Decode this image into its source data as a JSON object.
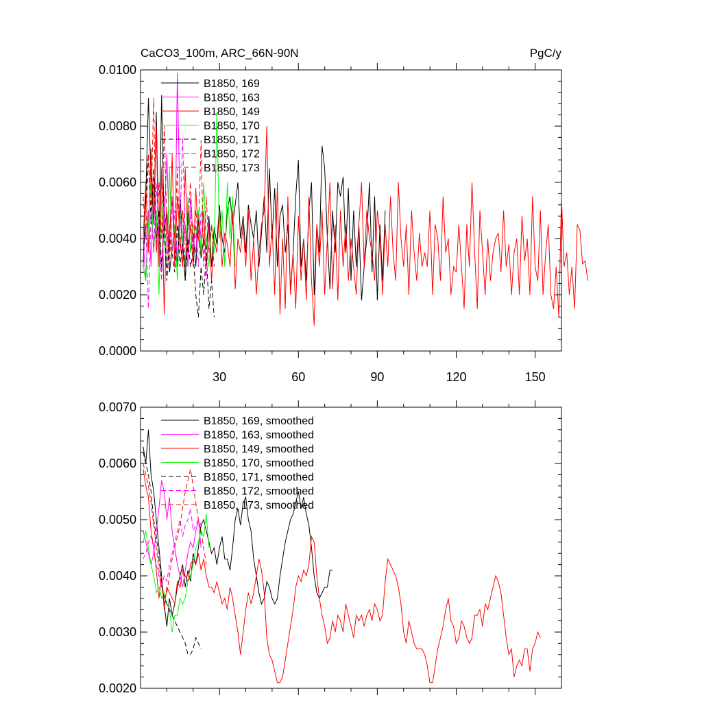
{
  "colors": {
    "black": "#000000",
    "magenta": "#ff00ff",
    "red": "#ff0000",
    "green": "#00ff00"
  },
  "chart_data": [
    {
      "type": "line",
      "title": "CaCO3_100m, ARC_66N-90N",
      "units": "PgC/y",
      "ylim": [
        0,
        0.01
      ],
      "xlim": [
        0,
        160
      ],
      "yticks": [
        "0.0000",
        "0.0020",
        "0.0040",
        "0.0060",
        "0.0080",
        "0.0100"
      ],
      "xticks": [
        "30",
        "60",
        "90",
        "120",
        "150"
      ],
      "legend_position": "top-left",
      "series": [
        {
          "name": "B1850, 169",
          "color": "#000000",
          "dash": "solid",
          "values": [
            0.003,
            0.0055,
            0.009,
            0.0062,
            0.0045,
            0.0085,
            0.0035,
            0.0091,
            0.0042,
            0.005,
            0.0028,
            0.0036,
            0.0044,
            0.003,
            0.0055,
            0.004,
            0.0025,
            0.005,
            0.0035,
            0.0042,
            0.003,
            0.0047,
            0.0033,
            0.004,
            0.0036,
            0.0048,
            0.003,
            0.0044,
            0.0038,
            0.0052,
            0.004,
            0.0035,
            0.005,
            0.0055,
            0.0045,
            0.0052,
            0.006,
            0.004,
            0.0048,
            0.0035,
            0.0052,
            0.0045,
            0.004,
            0.005,
            0.003,
            0.0042,
            0.0055,
            0.0035,
            0.0065,
            0.004,
            0.0058,
            0.003,
            0.0048,
            0.0052,
            0.0035,
            0.0045,
            0.0022,
            0.0035,
            0.0055,
            0.0068,
            0.003,
            0.004,
            0.0025,
            0.005,
            0.006,
            0.002,
            0.0045,
            0.0035,
            0.0073,
            0.0065,
            0.004,
            0.0022,
            0.005,
            0.0035,
            0.006,
            0.0055,
            0.0062,
            0.0035,
            0.0058,
            0.0025,
            0.005,
            0.003,
            0.0045,
            0.0018,
            0.003,
            0.004,
            0.006,
            0.0028,
            0.0055,
            0.0018,
            0.0045,
            0.0025,
            0.005
          ]
        },
        {
          "name": "B1850, 163",
          "color": "#ff00ff",
          "dash": "solid",
          "values": [
            0.004,
            0.0025,
            0.005,
            0.003,
            0.006,
            0.0035,
            0.005,
            0.0028,
            0.0045,
            0.007,
            0.004,
            0.0055,
            0.003,
            0.0099,
            0.005,
            0.0035,
            0.0045,
            0.003,
            0.0055,
            0.004,
            0.0035,
            0.005,
            0.004
          ]
        },
        {
          "name": "B1850, 149",
          "color": "#ff0000",
          "dash": "solid",
          "values": [
            0.004,
            0.006,
            0.0035,
            0.0072,
            0.0045,
            0.008,
            0.003,
            0.0065,
            0.0013,
            0.005,
            0.0035,
            0.007,
            0.003,
            0.0055,
            0.004,
            0.003,
            0.0065,
            0.0035,
            0.0045,
            0.003,
            0.0058,
            0.004,
            0.0035,
            0.005,
            0.003,
            0.0045,
            0.0025,
            0.004,
            0.0035,
            0.005,
            0.003,
            0.0042,
            0.0038,
            0.003,
            0.005,
            0.0022,
            0.004,
            0.0035,
            0.0045,
            0.003,
            0.005,
            0.0025,
            0.004,
            0.002,
            0.0035,
            0.0045,
            0.005,
            0.008,
            0.003,
            0.0045,
            0.002,
            0.006,
            0.0013,
            0.004,
            0.0015,
            0.0055,
            0.002,
            0.0035,
            0.0015,
            0.0048,
            0.0025,
            0.004,
            0.0018,
            0.0055,
            0.0025,
            0.0009,
            0.0045,
            0.003,
            0.005,
            0.002,
            0.004,
            0.006,
            0.0022,
            0.0045,
            0.0018,
            0.005,
            0.003,
            0.0045,
            0.0025,
            0.004,
            0.003,
            0.002,
            0.0045,
            0.006,
            0.003,
            0.005,
            0.004,
            0.0035,
            0.0025,
            0.005,
            0.0042,
            0.002,
            0.0045,
            0.003,
            0.0055,
            0.0035,
            0.0025,
            0.006,
            0.004,
            0.003,
            0.0045,
            0.002,
            0.005,
            0.0035,
            0.0025,
            0.0042,
            0.003,
            0.0035,
            0.003,
            0.005,
            0.002,
            0.0045,
            0.004,
            0.0025,
            0.0055,
            0.0035,
            0.004,
            0.002,
            0.003,
            0.0028,
            0.0045,
            0.003,
            0.0015,
            0.0045,
            0.003,
            0.006,
            0.0035,
            0.0015,
            0.005,
            0.0035,
            0.002,
            0.004,
            0.0025,
            0.0035,
            0.004,
            0.0042,
            0.0028,
            0.005,
            0.003,
            0.0038,
            0.002,
            0.0035,
            0.004,
            0.002,
            0.0048,
            0.0032,
            0.004,
            0.002,
            0.0055,
            0.003,
            0.0025,
            0.005,
            0.002,
            0.0035,
            0.0045,
            0.002,
            0.0015,
            0.003,
            0.0012,
            0.0055,
            0.003,
            0.0035,
            0.002,
            0.003,
            0.0015,
            0.0045,
            0.0043,
            0.0031,
            0.0032,
            0.0025
          ]
        },
        {
          "name": "B1850, 170",
          "color": "#00ff00",
          "dash": "solid",
          "values": [
            0.003,
            0.0025,
            0.0045,
            0.006,
            0.0035,
            0.005,
            0.002,
            0.0055,
            0.004,
            0.003,
            0.0065,
            0.0035,
            0.0045,
            0.0025,
            0.005,
            0.004,
            0.003,
            0.0055,
            0.0035,
            0.0045,
            0.004,
            0.005,
            0.0035,
            0.006,
            0.004,
            0.003,
            0.0045,
            0.0035,
            0.0085,
            0.004,
            0.005,
            0.003,
            0.006,
            0.004,
            0.0055,
            0.003
          ]
        },
        {
          "name": "B1850, 171",
          "color": "#000000",
          "dash": "dashed",
          "values": [
            0.003,
            0.0055,
            0.007,
            0.0045,
            0.0065,
            0.004,
            0.005,
            0.003,
            0.0045,
            0.0025,
            0.004,
            0.0035,
            0.0028,
            0.0045,
            0.003,
            0.0038,
            0.0025,
            0.004,
            0.003,
            0.0035,
            0.002,
            0.0012,
            0.003,
            0.002,
            0.0035,
            0.0015,
            0.0025,
            0.0012
          ]
        },
        {
          "name": "B1850, 172",
          "color": "#ff00ff",
          "dash": "dashed",
          "values": [
            0.003,
            0.0045,
            0.0015,
            0.005,
            0.0035,
            0.006,
            0.004,
            0.0025,
            0.0055,
            0.003,
            0.0045,
            0.0035,
            0.005,
            0.003,
            0.0045,
            0.0076,
            0.004,
            0.003,
            0.005,
            0.0035,
            0.0045,
            0.003,
            0.005,
            0.004,
            0.0025,
            0.0045
          ]
        },
        {
          "name": "B1850, 173",
          "color": "#ff0000",
          "dash": "dashed",
          "values": [
            0.0055,
            0.004,
            0.007,
            0.005,
            0.009,
            0.0035,
            0.006,
            0.004,
            0.008,
            0.0045,
            0.003,
            0.0055,
            0.004,
            0.0065,
            0.0035,
            0.005,
            0.003,
            0.0045,
            0.006,
            0.0035,
            0.005,
            0.004,
            0.0075,
            0.003,
            0.0055,
            0.0035,
            0.0045,
            0.003
          ]
        }
      ]
    },
    {
      "type": "line",
      "ylim": [
        0.002,
        0.007
      ],
      "xlim": [
        0,
        160
      ],
      "yticks": [
        "0.0020",
        "0.0030",
        "0.0040",
        "0.0050",
        "0.0060",
        "0.0070"
      ],
      "xticks": [],
      "legend_position": "top-left",
      "series": [
        {
          "name": "B1850, 169, smoothed",
          "color": "#000000",
          "dash": "solid",
          "values": [
            0.0063,
            0.006,
            0.0066,
            0.0058,
            0.0055,
            0.005,
            0.0045,
            0.004,
            0.0035,
            0.0031,
            0.0036,
            0.0033,
            0.0035,
            0.0038,
            0.004,
            0.0042,
            0.0038,
            0.0041,
            0.0039,
            0.0044,
            0.0042,
            0.0045,
            0.0049,
            0.005,
            0.0048,
            0.0046,
            0.0044,
            0.0045,
            0.0042,
            0.0045,
            0.0047,
            0.0043,
            0.0043,
            0.0041,
            0.0045,
            0.005,
            0.0052,
            0.0049,
            0.0053,
            0.0054,
            0.005,
            0.0048,
            0.0043,
            0.004,
            0.0037,
            0.0035,
            0.0036,
            0.0039,
            0.0038,
            0.0036,
            0.0035,
            0.0036,
            0.004,
            0.0043,
            0.0046,
            0.0048,
            0.005,
            0.0051,
            0.0053,
            0.0055,
            0.0052,
            0.0054,
            0.0051,
            0.0049,
            0.0045,
            0.004,
            0.0037,
            0.0036,
            0.0037,
            0.0038,
            0.0038,
            0.0041,
            0.0041
          ]
        },
        {
          "name": "B1850, 163, smoothed",
          "color": "#ff00ff",
          "dash": "solid",
          "values": [
            0.0048,
            0.0046,
            0.0044,
            0.0042,
            0.0044,
            0.0048,
            0.0052,
            0.0057,
            0.0055,
            0.005,
            0.0054,
            0.0048,
            0.0045,
            0.0042,
            0.004,
            0.0038,
            0.0041,
            0.0044,
            0.0046,
            0.0045,
            0.0048,
            0.005,
            0.0045
          ]
        },
        {
          "name": "B1850, 149, smoothed",
          "color": "#ff0000",
          "dash": "solid",
          "values": [
            0.0059,
            0.0056,
            0.0054,
            0.0048,
            0.0045,
            0.0041,
            0.0036,
            0.004,
            0.0034,
            0.0038,
            0.0037,
            0.0036,
            0.0035,
            0.0039,
            0.0038,
            0.0041,
            0.004,
            0.0039,
            0.0042,
            0.0043,
            0.0042,
            0.0044,
            0.0041,
            0.0043,
            0.004,
            0.0038,
            0.0038,
            0.0037,
            0.0039,
            0.0037,
            0.0035,
            0.0036,
            0.0034,
            0.0038,
            0.0036,
            0.0033,
            0.003,
            0.0026,
            0.003,
            0.0034,
            0.0037,
            0.0035,
            0.0037,
            0.004,
            0.0043,
            0.0041,
            0.0037,
            0.0029,
            0.0026,
            0.0025,
            0.0023,
            0.0021,
            0.0021,
            0.0022,
            0.0025,
            0.0028,
            0.0031,
            0.0034,
            0.0038,
            0.004,
            0.0039,
            0.0041,
            0.004,
            0.0042,
            0.0047,
            0.0046,
            0.004,
            0.0036,
            0.0033,
            0.0031,
            0.0028,
            0.0029,
            0.0032,
            0.003,
            0.0033,
            0.0032,
            0.003,
            0.0035,
            0.0033,
            0.0031,
            0.0029,
            0.0033,
            0.0032,
            0.0033,
            0.0031,
            0.0033,
            0.0034,
            0.0032,
            0.0035,
            0.0034,
            0.0032,
            0.0033,
            0.0039,
            0.0043,
            0.0042,
            0.0041,
            0.004,
            0.0038,
            0.0035,
            0.003,
            0.0028,
            0.0032,
            0.003,
            0.0028,
            0.0027,
            0.0027,
            0.0027,
            0.0026,
            0.0024,
            0.0021,
            0.0021,
            0.0024,
            0.0027,
            0.0029,
            0.0031,
            0.0034,
            0.0036,
            0.0032,
            0.0031,
            0.0028,
            0.0029,
            0.0032,
            0.0031,
            0.0029,
            0.0028,
            0.0029,
            0.0033,
            0.0033,
            0.0034,
            0.0031,
            0.0035,
            0.0034,
            0.0036,
            0.0038,
            0.004,
            0.0039,
            0.0037,
            0.0033,
            0.0029,
            0.0026,
            0.0027,
            0.0022,
            0.0024,
            0.0025,
            0.0024,
            0.0027,
            0.0027,
            0.0023,
            0.0027,
            0.0028,
            0.003,
            0.0029
          ]
        },
        {
          "name": "B1850, 170, smoothed",
          "color": "#00ff00",
          "dash": "solid",
          "values": [
            0.0046,
            0.0048,
            0.0045,
            0.0042,
            0.004,
            0.0037,
            0.0038,
            0.0036,
            0.0037,
            0.0035,
            0.0034,
            0.003,
            0.0033,
            0.0033,
            0.0036,
            0.0035,
            0.0036,
            0.0039,
            0.004,
            0.0042,
            0.0045,
            0.0046,
            0.0048,
            0.0047,
            0.0051,
            0.0045
          ]
        },
        {
          "name": "B1850, 171, smoothed",
          "color": "#000000",
          "dash": "dashed",
          "values": [
            0.0062,
            0.006,
            0.0058,
            0.0055,
            0.005,
            0.0047,
            0.0043,
            0.0039,
            0.0036,
            0.0035,
            0.0034,
            0.0033,
            0.0032,
            0.0031,
            0.003,
            0.0029,
            0.0028,
            0.0026,
            0.0026,
            0.0027,
            0.0029,
            0.0028,
            0.0027
          ]
        },
        {
          "name": "B1850, 172, smoothed",
          "color": "#ff00ff",
          "dash": "dashed",
          "values": [
            0.0043,
            0.0044,
            0.0046,
            0.0047,
            0.0045,
            0.0042,
            0.004,
            0.0038,
            0.004,
            0.0039,
            0.0042,
            0.0044,
            0.0046,
            0.0048,
            0.005,
            0.0047,
            0.0049,
            0.005,
            0.0052,
            0.0048,
            0.0049,
            0.005,
            0.0049
          ]
        },
        {
          "name": "B1850, 173, smoothed",
          "color": "#ff0000",
          "dash": "dashed",
          "values": [
            0.006,
            0.0058,
            0.0056,
            0.0053,
            0.0049,
            0.0045,
            0.0041,
            0.0038,
            0.0036,
            0.0037,
            0.004,
            0.0043,
            0.0045,
            0.0047,
            0.0049,
            0.0052,
            0.0055,
            0.0057,
            0.0059,
            0.0056,
            0.0053,
            0.005,
            0.0048,
            0.0045,
            0.0042
          ]
        }
      ]
    }
  ]
}
